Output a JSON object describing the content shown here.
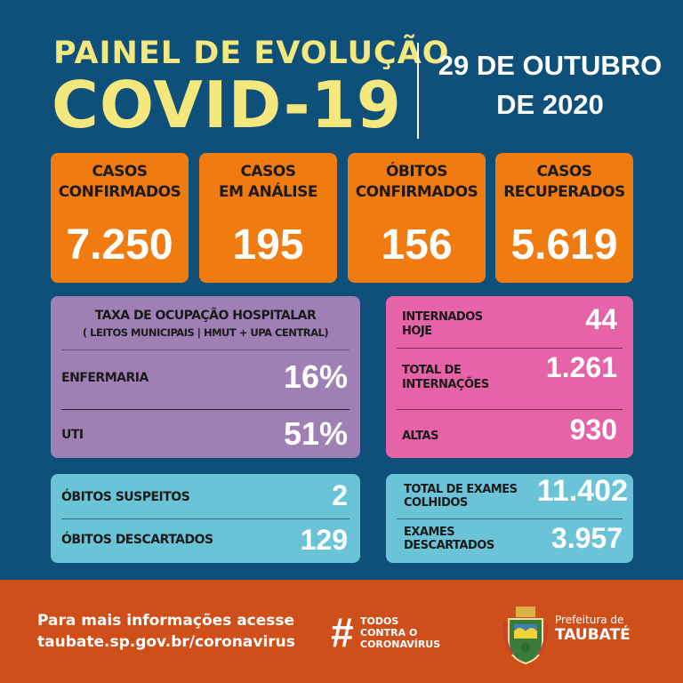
{
  "header": {
    "title_line1": "PAINEL DE EVOLUÇÃO",
    "title_line2": "COVID-19",
    "date_line1": "29 DE OUTUBRO",
    "date_line2": "DE 2020"
  },
  "cards": [
    {
      "label1": "CASOS",
      "label2": "CONFIRMADOS",
      "value": "7.250"
    },
    {
      "label1": "CASOS",
      "label2": "EM ANÁLISE",
      "value": "195"
    },
    {
      "label1": "ÓBITOS",
      "label2": "CONFIRMADOS",
      "value": "156"
    },
    {
      "label1": "CASOS",
      "label2": "RECUPERADOS",
      "value": "5.619"
    }
  ],
  "occupancy": {
    "title": "TAXA DE OCUPAÇÃO HOSPITALAR",
    "subtitle": "( LEITOS MUNICIPAIS | HMUT + UPA CENTRAL)",
    "rows": [
      {
        "label": "ENFERMARIA",
        "value": "16%"
      },
      {
        "label": "UTI",
        "value": "51%"
      }
    ]
  },
  "hospital": {
    "rows": [
      {
        "label1": "INTERNADOS",
        "label2": "HOJE",
        "value": "44"
      },
      {
        "label1": "TOTAL DE",
        "label2": "INTERNAÇÕES",
        "value": "1.261"
      },
      {
        "label1": "ALTAS",
        "label2": "",
        "value": "930"
      }
    ]
  },
  "deaths": {
    "rows": [
      {
        "label": "ÓBITOS SUSPEITOS",
        "value": "2"
      },
      {
        "label": "ÓBITOS DESCARTADOS",
        "value": "129"
      }
    ]
  },
  "exams": {
    "rows": [
      {
        "label1": "TOTAL DE EXAMES",
        "label2": "COLHIDOS",
        "value": "11.402"
      },
      {
        "label1": "EXAMES",
        "label2": "DESCARTADOS",
        "value": "3.957"
      }
    ]
  },
  "footer": {
    "info_line1": "Para mais informações acesse",
    "info_line2": "taubate.sp.gov.br/coronavirus",
    "hashtag": "#",
    "tag_line1": "TODOS",
    "tag_line2": "CONTRA O",
    "tag_line3": "CORONAVÍRUS",
    "city_line1": "Prefeitura de",
    "city_line2": "TAUBATÉ"
  },
  "colors": {
    "background": "#0e5079",
    "title": "#f3e77e",
    "cards": "#f07b10",
    "occupancy": "#9f80b5",
    "hospital": "#e763a8",
    "deaths": "#6ac3d7",
    "footer": "#cf4f1b"
  }
}
